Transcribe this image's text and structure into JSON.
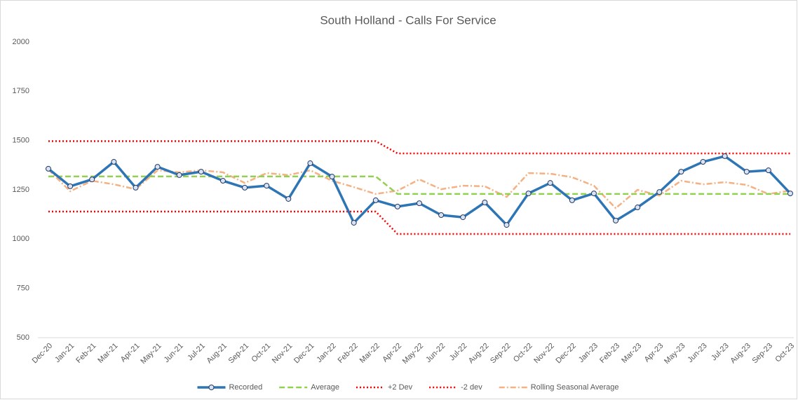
{
  "chart_data": {
    "type": "line",
    "title": "South Holland - Calls For Service",
    "categories": [
      "Dec-20",
      "Jan-21",
      "Feb-21",
      "Mar-21",
      "Apr-21",
      "May-21",
      "Jun-21",
      "Jul-21",
      "Aug-21",
      "Sep-21",
      "Oct-21",
      "Nov-21",
      "Dec-21",
      "Jan-22",
      "Feb-22",
      "Mar-22",
      "Apr-22",
      "May-22",
      "Jun-22",
      "Jul-22",
      "Aug-22",
      "Sep-22",
      "Oct-22",
      "Nov-22",
      "Dec-22",
      "Jan-23",
      "Feb-23",
      "Mar-23",
      "Apr-23",
      "May-23",
      "Jun-23",
      "Jul-23",
      "Aug-23",
      "Sep-23",
      "Oct-23"
    ],
    "ylim": [
      500,
      2000
    ],
    "yticks": [
      500,
      750,
      1000,
      1250,
      1500,
      1750,
      2000
    ],
    "grid": false,
    "legend": "bottom",
    "series": [
      {
        "name": "Recorded",
        "color": "#2e75b6",
        "style": "solid",
        "markers": true,
        "values": [
          1357,
          1268,
          1303,
          1392,
          1261,
          1367,
          1325,
          1342,
          1296,
          1261,
          1271,
          1204,
          1385,
          1317,
          1083,
          1197,
          1165,
          1182,
          1122,
          1111,
          1186,
          1072,
          1232,
          1285,
          1197,
          1232,
          1094,
          1161,
          1239,
          1342,
          1392,
          1421,
          1342,
          1349,
          1232
        ]
      },
      {
        "name": "Average",
        "color": "#92d050",
        "style": "dashed",
        "markers": false,
        "values": [
          1318,
          1318,
          1318,
          1318,
          1318,
          1318,
          1318,
          1318,
          1318,
          1318,
          1318,
          1318,
          1318,
          1318,
          1318,
          1318,
          1229,
          1229,
          1229,
          1229,
          1229,
          1229,
          1229,
          1229,
          1229,
          1229,
          1229,
          1229,
          1229,
          1229,
          1229,
          1229,
          1229,
          1229,
          1229
        ]
      },
      {
        "name": "+2 Dev",
        "color": "#ff0000",
        "style": "dotted",
        "markers": false,
        "values": [
          1497,
          1497,
          1497,
          1497,
          1497,
          1497,
          1497,
          1497,
          1497,
          1497,
          1497,
          1497,
          1497,
          1497,
          1497,
          1497,
          1435,
          1435,
          1435,
          1435,
          1435,
          1435,
          1435,
          1435,
          1435,
          1435,
          1435,
          1435,
          1435,
          1435,
          1435,
          1435,
          1435,
          1435,
          1435
        ]
      },
      {
        "name": "-2 dev",
        "color": "#ff0000",
        "style": "dotted",
        "markers": false,
        "values": [
          1140,
          1140,
          1140,
          1140,
          1140,
          1140,
          1140,
          1140,
          1140,
          1140,
          1140,
          1140,
          1140,
          1140,
          1140,
          1140,
          1026,
          1026,
          1026,
          1026,
          1026,
          1026,
          1026,
          1026,
          1026,
          1026,
          1026,
          1026,
          1026,
          1026,
          1026,
          1026,
          1026,
          1026,
          1026
        ]
      },
      {
        "name": "Rolling Seasonal Average",
        "color": "#f4b183",
        "style": "dashdot",
        "markers": false,
        "values": [
          1353,
          1243,
          1296,
          1278,
          1253,
          1349,
          1339,
          1349,
          1339,
          1285,
          1335,
          1325,
          1349,
          1296,
          1264,
          1229,
          1246,
          1303,
          1253,
          1271,
          1268,
          1214,
          1335,
          1332,
          1314,
          1271,
          1157,
          1250,
          1221,
          1296,
          1278,
          1289,
          1275,
          1229,
          1246
        ]
      }
    ]
  }
}
